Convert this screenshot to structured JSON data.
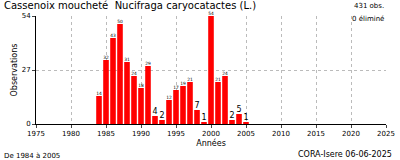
{
  "chart_data": {
    "type": "bar",
    "title": "Cassenoix moucheté  Nucifraga caryocatactes (L.)",
    "xlabel": "Années",
    "ylabel": "Observations",
    "annotations": [
      "431 obs.",
      "0 éliminé",
      "De 1984 à 2005",
      "CORA-Isere 06-06-2025"
    ],
    "x": [
      1984,
      1985,
      1986,
      1987,
      1988,
      1989,
      1990,
      1991,
      1992,
      1993,
      1994,
      1995,
      1996,
      1997,
      1998,
      1999,
      2000,
      2001,
      2002,
      2003,
      2004,
      2005
    ],
    "values": [
      14,
      32,
      43,
      50,
      31,
      24,
      18,
      29,
      4,
      2,
      12,
      17,
      19,
      21,
      7,
      1,
      54,
      21,
      24,
      2,
      5,
      1
    ],
    "color": "#ff0000",
    "xlim": [
      1975,
      2025
    ],
    "xticks": [
      1975,
      1980,
      1985,
      1990,
      1995,
      2000,
      2005,
      2010,
      2015,
      2020,
      2025
    ],
    "ylim": [
      0,
      54
    ],
    "yticks": [
      0,
      27,
      54
    ],
    "grid": true,
    "data_labels": true
  }
}
